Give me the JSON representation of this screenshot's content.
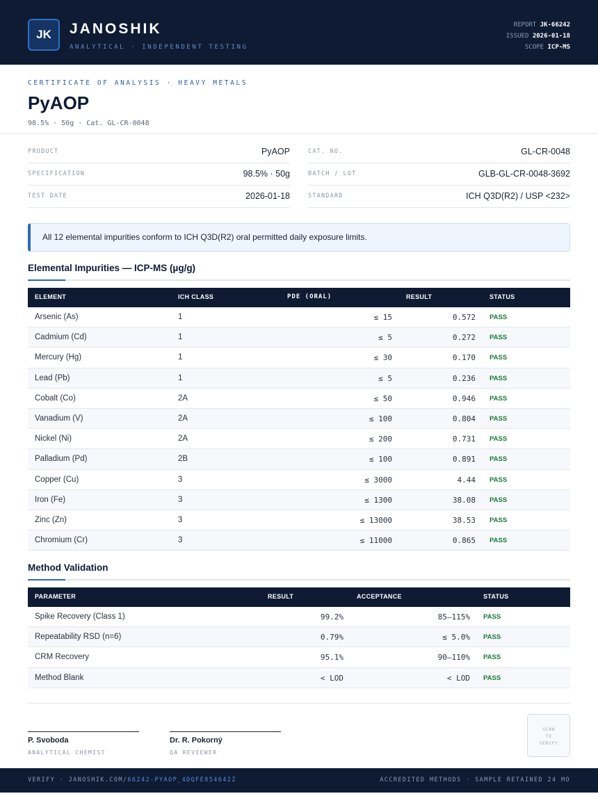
{
  "header": {
    "logo": "JK",
    "brand": "JANOSHIK",
    "tagline": "ANALYTICAL · INDEPENDENT TESTING",
    "report_label": "REPORT",
    "report_value": "JK-66242",
    "issued_label": "ISSUED",
    "issued_value": "2026-01-18",
    "scope_label": "SCOPE",
    "scope_value": "ICP-MS"
  },
  "title_block": {
    "overline": "CERTIFICATE OF ANALYSIS · HEAVY METALS",
    "title": "PyAOP",
    "subline": "98.5% · 50g  ·  Cat. GL-CR-0048"
  },
  "info": {
    "product_label": "PRODUCT",
    "product_value": "PyAOP",
    "spec_label": "SPECIFICATION",
    "spec_value": "98.5% · 50g",
    "date_label": "TEST DATE",
    "date_value": "2026-01-18",
    "cat_label": "CAT. NO.",
    "cat_value": "GL-CR-0048",
    "batch_label": "BATCH / LOT",
    "batch_value": "GLB-GL-CR-0048-3692",
    "standard_label": "STANDARD",
    "standard_value": "ICH Q3D(R2) / USP <232>"
  },
  "notice": "All 12 elemental impurities conform to ICH Q3D(R2) oral permitted daily exposure limits.",
  "impurities": {
    "title": "Elemental Impurities — ICP-MS (µg/g)",
    "headers": [
      "ELEMENT",
      "ICH CLASS",
      "PDE (ORAL)",
      "RESULT",
      "STATUS"
    ],
    "rows": [
      [
        "Arsenic (As)",
        "1",
        "≤ 15",
        "0.572",
        "PASS"
      ],
      [
        "Cadmium (Cd)",
        "1",
        "≤ 5",
        "0.272",
        "PASS"
      ],
      [
        "Mercury (Hg)",
        "1",
        "≤ 30",
        "0.170",
        "PASS"
      ],
      [
        "Lead (Pb)",
        "1",
        "≤ 5",
        "0.236",
        "PASS"
      ],
      [
        "Cobalt (Co)",
        "2A",
        "≤ 50",
        "0.946",
        "PASS"
      ],
      [
        "Vanadium (V)",
        "2A",
        "≤ 100",
        "0.804",
        "PASS"
      ],
      [
        "Nickel (Ni)",
        "2A",
        "≤ 200",
        "0.731",
        "PASS"
      ],
      [
        "Palladium (Pd)",
        "2B",
        "≤ 100",
        "0.891",
        "PASS"
      ],
      [
        "Copper (Cu)",
        "3",
        "≤ 3000",
        "4.44",
        "PASS"
      ],
      [
        "Iron (Fe)",
        "3",
        "≤ 1300",
        "38.08",
        "PASS"
      ],
      [
        "Zinc (Zn)",
        "3",
        "≤ 13000",
        "38.53",
        "PASS"
      ],
      [
        "Chromium (Cr)",
        "3",
        "≤ 11000",
        "0.865",
        "PASS"
      ]
    ]
  },
  "validation": {
    "title": "Method Validation",
    "headers": [
      "PARAMETER",
      "RESULT",
      "ACCEPTANCE",
      "STATUS"
    ],
    "rows": [
      [
        "Spike Recovery (Class 1)",
        "99.2%",
        "85–115%",
        "PASS"
      ],
      [
        "Repeatability RSD (n=6)",
        "0.79%",
        "≤ 5.0%",
        "PASS"
      ],
      [
        "CRM Recovery",
        "95.1%",
        "90–110%",
        "PASS"
      ],
      [
        "Method Blank",
        "< LOD",
        "< LOD",
        "PASS"
      ]
    ]
  },
  "signatures": {
    "one_name": "P. Svoboda",
    "one_role": "ANALYTICAL CHEMIST",
    "two_name": "Dr. R. Pokorný",
    "two_role": "QA REVIEWER",
    "qr_1": "SCAN",
    "qr_2": "TO",
    "qr_3": "VERIFY"
  },
  "footer": {
    "verify_prefix": "VERIFY · JANOSHIK.COM/",
    "verify_link": "66242-PYAOP_4DQFE854642Z",
    "right": "ACCREDITED METHODS · SAMPLE RETAINED 24 MO"
  },
  "colors": {
    "navy": "#0e1b33",
    "accent": "#2a6ab7",
    "pass": "#1a7a3a"
  }
}
